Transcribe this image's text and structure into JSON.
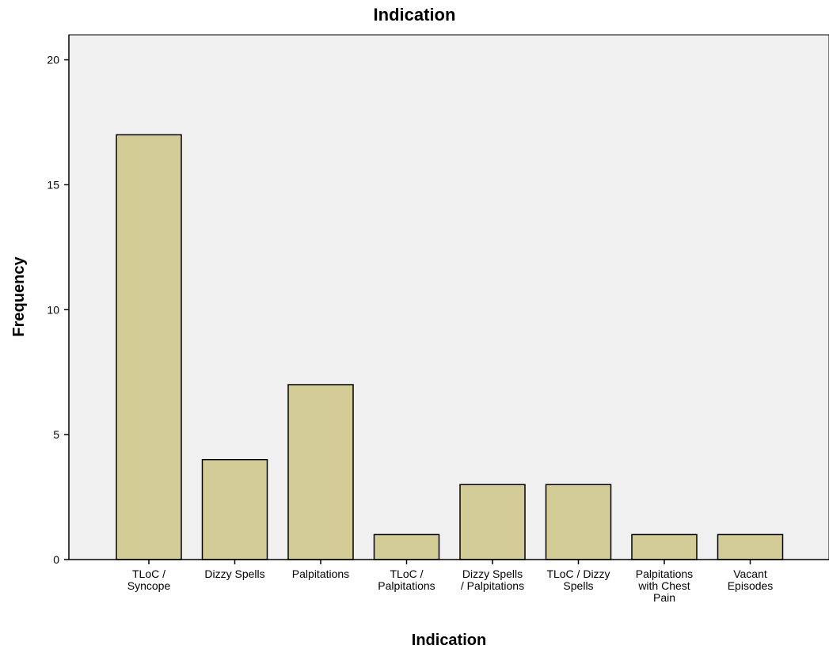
{
  "chart_data": {
    "type": "bar",
    "title": "Indication",
    "xlabel": "Indication",
    "ylabel": "Frequency",
    "categories": [
      [
        "TLoC /",
        "Syncope"
      ],
      [
        "Dizzy Spells"
      ],
      [
        "Palpitations"
      ],
      [
        "TLoC /",
        "Palpitations"
      ],
      [
        "Dizzy Spells",
        "/ Palpitations"
      ],
      [
        "TLoC / Dizzy",
        "Spells"
      ],
      [
        "Palpitations",
        "with Chest",
        "Pain"
      ],
      [
        "Vacant",
        "Episodes"
      ]
    ],
    "values": [
      17,
      4,
      7,
      1,
      3,
      3,
      1,
      1
    ],
    "ylim": [
      0,
      21
    ],
    "yticks": [
      0,
      5,
      10,
      15,
      20
    ],
    "grid": false,
    "colors": {
      "bar_fill": "#d3cc96",
      "bar_stroke": "#000000",
      "plot_bg": "#f0f0f0",
      "axis": "#000000"
    }
  }
}
